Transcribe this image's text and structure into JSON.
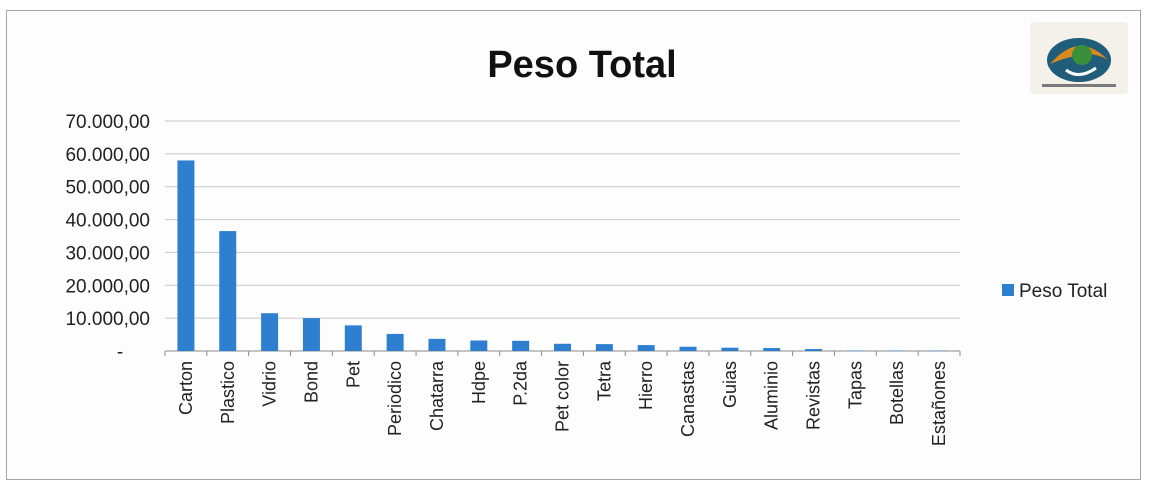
{
  "chart_data": {
    "type": "bar",
    "title": "Peso Total",
    "xlabel": "",
    "ylabel": "",
    "ylim": [
      0,
      70000
    ],
    "yticks": [
      {
        "value": 0,
        "label": "-"
      },
      {
        "value": 10000,
        "label": "10.000,00"
      },
      {
        "value": 20000,
        "label": "20.000,00"
      },
      {
        "value": 30000,
        "label": "30.000,00"
      },
      {
        "value": 40000,
        "label": "40.000,00"
      },
      {
        "value": 50000,
        "label": "50.000,00"
      },
      {
        "value": 60000,
        "label": "60.000,00"
      },
      {
        "value": 70000,
        "label": "70.000,00"
      }
    ],
    "categories": [
      "Carton",
      "Plastico",
      "Vidrio",
      "Bond",
      "Pet",
      "Periodico",
      "Chatarra",
      "Hdpe",
      "P.2da",
      "Pet color",
      "Tetra",
      "Hierro",
      "Canastas",
      "Guias",
      "Aluminio",
      "Revistas",
      "Tapas",
      "Botellas",
      "Estañones"
    ],
    "series": [
      {
        "name": "Peso Total",
        "color": "#2e7fd0",
        "values": [
          58000,
          36500,
          11500,
          10000,
          7800,
          5200,
          3700,
          3200,
          3100,
          2200,
          2100,
          1800,
          1300,
          1000,
          900,
          600,
          100,
          50,
          30
        ]
      }
    ],
    "grid": true,
    "legend": "right"
  },
  "logo": {
    "icon": "recycling-logo-icon"
  }
}
